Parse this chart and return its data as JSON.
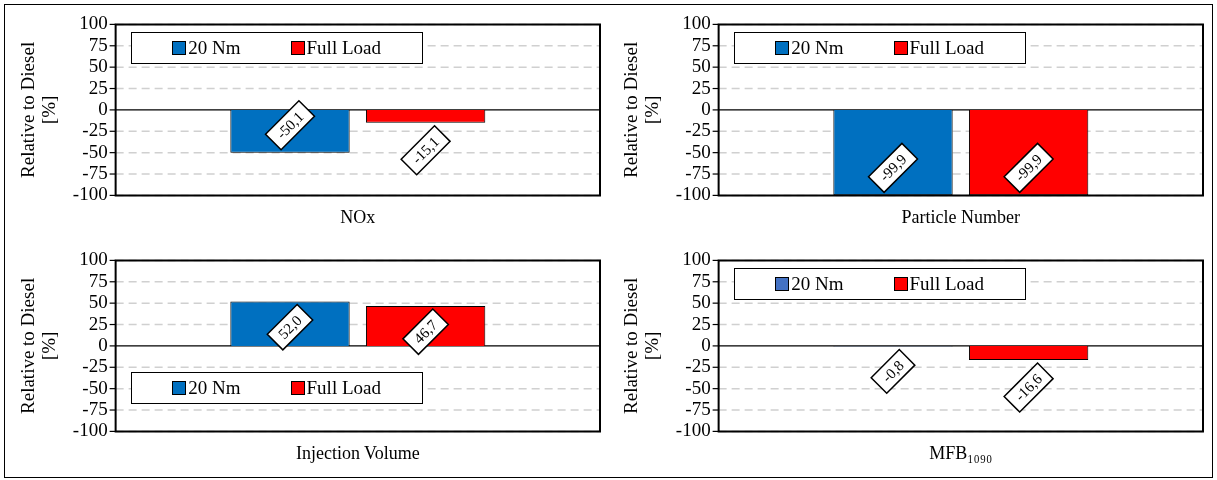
{
  "chart_data": [
    {
      "type": "bar",
      "categories": [
        "NOx"
      ],
      "ylabel": "Relative to Diesel\n[%]",
      "ylim": [
        -100,
        100
      ],
      "yticks": [
        -100,
        -75,
        -50,
        -25,
        0,
        25,
        50,
        75,
        100
      ],
      "grid": "y",
      "legend": "top left",
      "series": [
        {
          "name": "20 Nm",
          "color": "#0070c0",
          "values": [
            -50.1
          ],
          "value_labels": [
            "-50,1"
          ]
        },
        {
          "name": "Full Load",
          "color": "#ff0000",
          "values": [
            -15.1
          ],
          "value_labels": [
            "-15,1"
          ]
        }
      ]
    },
    {
      "type": "bar",
      "categories": [
        "Particle Number"
      ],
      "ylabel": "Relative to Diesel\n[%]",
      "ylim": [
        -100,
        100
      ],
      "yticks": [
        -100,
        -75,
        -50,
        -25,
        0,
        25,
        50,
        75,
        100
      ],
      "grid": "y",
      "legend": "top left",
      "series": [
        {
          "name": "20 Nm",
          "color": "#0070c0",
          "values": [
            -99.9
          ],
          "value_labels": [
            "-99,9"
          ]
        },
        {
          "name": "Full Load",
          "color": "#ff0000",
          "values": [
            -99.9
          ],
          "value_labels": [
            "-99,9"
          ]
        }
      ]
    },
    {
      "type": "bar",
      "categories": [
        "Injection Volume"
      ],
      "ylabel": "Relative to Diesel\n[%]",
      "ylim": [
        -100,
        100
      ],
      "yticks": [
        -100,
        -75,
        -50,
        -25,
        0,
        25,
        50,
        75,
        100
      ],
      "grid": "y",
      "legend": "bottom left",
      "series": [
        {
          "name": "20 Nm",
          "color": "#0070c0",
          "values": [
            52.0
          ],
          "value_labels": [
            "52,0"
          ]
        },
        {
          "name": "Full Load",
          "color": "#ff0000",
          "values": [
            46.7
          ],
          "value_labels": [
            "46,7"
          ]
        }
      ]
    },
    {
      "type": "bar",
      "categories": [
        "MFB₁₀₉₀"
      ],
      "ylabel": "Relative to Diesel\n[%]",
      "ylim": [
        -100,
        100
      ],
      "yticks": [
        -100,
        -75,
        -50,
        -25,
        0,
        25,
        50,
        75,
        100
      ],
      "grid": "y",
      "legend": "top left",
      "series": [
        {
          "name": "20 Nm",
          "color": "#4472c4",
          "values": [
            -0.8
          ],
          "value_labels": [
            "-0,8"
          ]
        },
        {
          "name": "Full Load",
          "color": "#ff0000",
          "values": [
            -16.6
          ],
          "value_labels": [
            "-16,6"
          ]
        }
      ]
    }
  ]
}
